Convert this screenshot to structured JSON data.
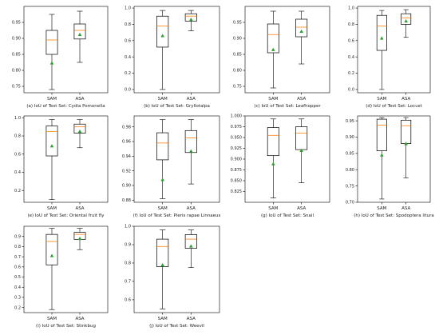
{
  "colors": {
    "box": "#000000",
    "median": "#ff7f0e",
    "mean": "#2ca02c",
    "axes": "#000000",
    "background": "#ffffff"
  },
  "chart_data": [
    {
      "type": "box",
      "caption": "(a) IoU of Test Set: Cydia Pomonella",
      "categories": [
        "SAM",
        "ASA"
      ],
      "ylim": [
        0.73,
        1.0
      ],
      "yticks": [
        0.75,
        0.8,
        0.85,
        0.9,
        0.95
      ],
      "ytick_labels": [
        "0.75",
        "0.80",
        "0.85",
        "0.90",
        "0.95"
      ],
      "boxes": [
        {
          "name": "SAM",
          "whislo": 0.74,
          "q1": 0.85,
          "med": 0.895,
          "q3": 0.925,
          "whishi": 0.975,
          "mean": 0.823
        },
        {
          "name": "ASA",
          "whislo": 0.825,
          "q1": 0.898,
          "med": 0.925,
          "q3": 0.945,
          "whishi": 0.985,
          "mean": 0.912
        }
      ]
    },
    {
      "type": "box",
      "caption": "(b) IoU of Test Set: Gryllotalpa",
      "categories": [
        "SAM",
        "ASA"
      ],
      "ylim": [
        -0.04,
        1.02
      ],
      "yticks": [
        0.0,
        0.2,
        0.4,
        0.6,
        0.8,
        1.0
      ],
      "ytick_labels": [
        "0.0",
        "0.2",
        "0.4",
        "0.6",
        "0.8",
        "1.0"
      ],
      "boxes": [
        {
          "name": "SAM",
          "whislo": 0.0,
          "q1": 0.52,
          "med": 0.78,
          "q3": 0.9,
          "whishi": 0.97,
          "mean": 0.66
        },
        {
          "name": "ASA",
          "whislo": 0.72,
          "q1": 0.84,
          "med": 0.9,
          "q3": 0.93,
          "whishi": 0.97,
          "mean": 0.86
        }
      ]
    },
    {
      "type": "box",
      "caption": "(c) IoU of Test Set: Leafhopper",
      "categories": [
        "SAM",
        "ASA"
      ],
      "ylim": [
        0.73,
        1.0
      ],
      "yticks": [
        0.75,
        0.8,
        0.85,
        0.9,
        0.95
      ],
      "ytick_labels": [
        "0.75",
        "0.80",
        "0.85",
        "0.90",
        "0.95"
      ],
      "boxes": [
        {
          "name": "SAM",
          "whislo": 0.745,
          "q1": 0.855,
          "med": 0.912,
          "q3": 0.945,
          "whishi": 0.985,
          "mean": 0.865
        },
        {
          "name": "ASA",
          "whislo": 0.82,
          "q1": 0.905,
          "med": 0.935,
          "q3": 0.96,
          "whishi": 0.985,
          "mean": 0.922
        }
      ]
    },
    {
      "type": "box",
      "caption": "(d) IoU of Test Set: Locust",
      "categories": [
        "SAM",
        "ASA"
      ],
      "ylim": [
        -0.04,
        1.02
      ],
      "yticks": [
        0.0,
        0.2,
        0.4,
        0.6,
        0.8,
        1.0
      ],
      "ytick_labels": [
        "0.0",
        "0.2",
        "0.4",
        "0.6",
        "0.8",
        "1.0"
      ],
      "boxes": [
        {
          "name": "SAM",
          "whislo": 0.0,
          "q1": 0.48,
          "med": 0.78,
          "q3": 0.91,
          "whishi": 0.97,
          "mean": 0.63
        },
        {
          "name": "ASA",
          "whislo": 0.64,
          "q1": 0.8,
          "med": 0.88,
          "q3": 0.93,
          "whishi": 0.98,
          "mean": 0.84
        }
      ]
    },
    {
      "type": "box",
      "caption": "(e) IoU of Test Set: Oriental fruit fly",
      "categories": [
        "SAM",
        "ASA"
      ],
      "ylim": [
        0.07,
        1.02
      ],
      "yticks": [
        0.2,
        0.4,
        0.6,
        0.8,
        1.0
      ],
      "ytick_labels": [
        "0.2",
        "0.4",
        "0.6",
        "0.8",
        "1.0"
      ],
      "boxes": [
        {
          "name": "SAM",
          "whislo": 0.1,
          "q1": 0.58,
          "med": 0.85,
          "q3": 0.91,
          "whishi": 0.98,
          "mean": 0.69
        },
        {
          "name": "ASA",
          "whislo": 0.67,
          "q1": 0.83,
          "med": 0.9,
          "q3": 0.93,
          "whishi": 0.98,
          "mean": 0.85
        }
      ]
    },
    {
      "type": "box",
      "caption": "(f) IoU of Test Set: Pieris rapae Linnaeus",
      "categories": [
        "SAM",
        "ASA"
      ],
      "ylim": [
        0.877,
        0.995
      ],
      "yticks": [
        0.88,
        0.9,
        0.92,
        0.94,
        0.96,
        0.98
      ],
      "ytick_labels": [
        "0.88",
        "0.90",
        "0.92",
        "0.94",
        "0.96",
        "0.98"
      ],
      "boxes": [
        {
          "name": "SAM",
          "whislo": 0.882,
          "q1": 0.935,
          "med": 0.958,
          "q3": 0.972,
          "whishi": 0.99,
          "mean": 0.908
        },
        {
          "name": "ASA",
          "whislo": 0.902,
          "q1": 0.945,
          "med": 0.965,
          "q3": 0.975,
          "whishi": 0.99,
          "mean": 0.947
        }
      ]
    },
    {
      "type": "box",
      "caption": "(g) IoU of Test Set: Snail",
      "categories": [
        "SAM",
        "ASA"
      ],
      "ylim": [
        0.8,
        1.0
      ],
      "yticks": [
        0.825,
        0.85,
        0.875,
        0.9,
        0.925,
        0.95,
        0.975,
        1.0
      ],
      "ytick_labels": [
        "0.825",
        "0.850",
        "0.875",
        "0.900",
        "0.925",
        "0.950",
        "0.975",
        "1.000"
      ],
      "boxes": [
        {
          "name": "SAM",
          "whislo": 0.81,
          "q1": 0.908,
          "med": 0.955,
          "q3": 0.973,
          "whishi": 0.993,
          "mean": 0.889
        },
        {
          "name": "ASA",
          "whislo": 0.845,
          "q1": 0.922,
          "med": 0.96,
          "q3": 0.975,
          "whishi": 0.993,
          "mean": 0.92
        }
      ]
    },
    {
      "type": "box",
      "caption": "(h) IoU of Test Set: Spodoptera litura",
      "categories": [
        "SAM",
        "ASA"
      ],
      "ylim": [
        0.7,
        0.965
      ],
      "yticks": [
        0.7,
        0.75,
        0.8,
        0.85,
        0.9,
        0.95
      ],
      "ytick_labels": [
        "0.70",
        "0.75",
        "0.80",
        "0.85",
        "0.90",
        "0.95"
      ],
      "boxes": [
        {
          "name": "SAM",
          "whislo": 0.71,
          "q1": 0.858,
          "med": 0.937,
          "q3": 0.955,
          "whishi": 0.96,
          "mean": 0.845
        },
        {
          "name": "ASA",
          "whislo": 0.775,
          "q1": 0.88,
          "med": 0.935,
          "q3": 0.952,
          "whishi": 0.96,
          "mean": 0.88
        }
      ]
    },
    {
      "type": "box",
      "caption": "(i) IoU of Test Set: Stinkbug",
      "categories": [
        "SAM",
        "ASA"
      ],
      "ylim": [
        0.15,
        1.0
      ],
      "yticks": [
        0.2,
        0.3,
        0.4,
        0.5,
        0.6,
        0.7,
        0.8,
        0.9
      ],
      "ytick_labels": [
        "0.2",
        "0.3",
        "0.4",
        "0.5",
        "0.6",
        "0.7",
        "0.8",
        "0.9"
      ],
      "boxes": [
        {
          "name": "SAM",
          "whislo": 0.18,
          "q1": 0.62,
          "med": 0.85,
          "q3": 0.92,
          "whishi": 0.98,
          "mean": 0.71
        },
        {
          "name": "ASA",
          "whislo": 0.77,
          "q1": 0.87,
          "med": 0.92,
          "q3": 0.94,
          "whishi": 0.98,
          "mean": 0.88
        }
      ]
    },
    {
      "type": "box",
      "caption": "(j) IoU of Test Set: Weevil",
      "categories": [
        "SAM",
        "ASA"
      ],
      "ylim": [
        0.53,
        1.0
      ],
      "yticks": [
        0.6,
        0.7,
        0.8,
        0.9,
        1.0
      ],
      "ytick_labels": [
        "0.6",
        "0.7",
        "0.8",
        "0.9",
        "1.0"
      ],
      "boxes": [
        {
          "name": "SAM",
          "whislo": 0.55,
          "q1": 0.78,
          "med": 0.89,
          "q3": 0.93,
          "whishi": 0.98,
          "mean": 0.79
        },
        {
          "name": "ASA",
          "whislo": 0.775,
          "q1": 0.88,
          "med": 0.93,
          "q3": 0.955,
          "whishi": 0.98,
          "mean": 0.892
        }
      ]
    }
  ]
}
